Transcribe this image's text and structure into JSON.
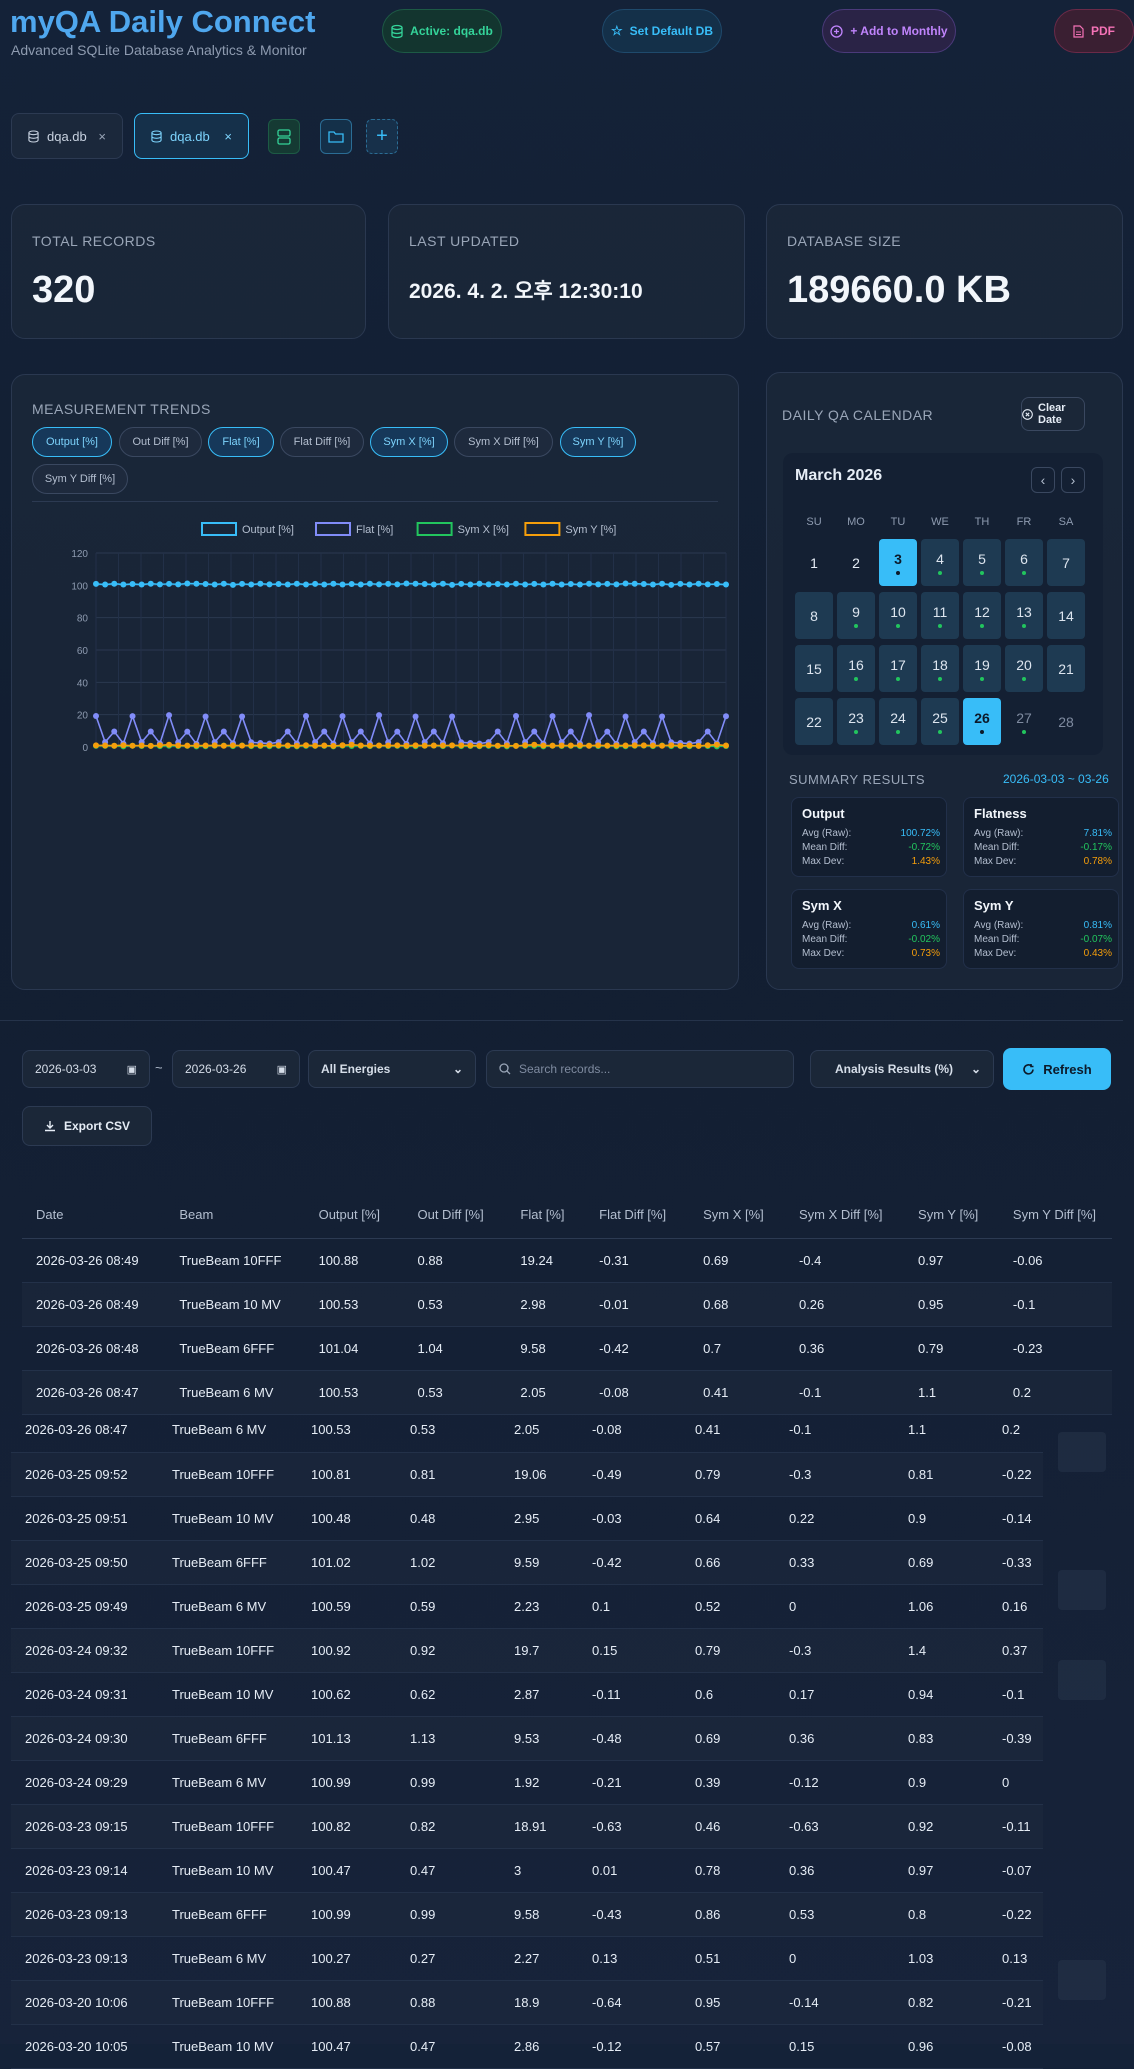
{
  "header": {
    "title": "myQA Daily Connect",
    "subtitle": "Advanced SQLite Database Analytics & Monitor",
    "active_db": "Active: dqa.db",
    "set_default": "Set Default DB",
    "add_monthly": "+ Add to Monthly",
    "pdf": "PDF"
  },
  "tabs": [
    {
      "label": "dqa.db",
      "close": "×"
    },
    {
      "label": "dqa.db",
      "close": "×"
    }
  ],
  "stats": {
    "total_records_label": "TOTAL RECORDS",
    "total_records": "320",
    "last_updated_label": "LAST UPDATED",
    "last_updated": "2026. 4. 2. 오후 12:30:10",
    "db_size_label": "DATABASE SIZE",
    "db_size": "189660.0 KB"
  },
  "trends": {
    "heading": "MEASUREMENT TRENDS",
    "chips": [
      {
        "label": "Output [%]",
        "active": true
      },
      {
        "label": "Out Diff [%]",
        "active": false
      },
      {
        "label": "Flat [%]",
        "active": true
      },
      {
        "label": "Flat Diff [%]",
        "active": false
      },
      {
        "label": "Sym X [%]",
        "active": true
      },
      {
        "label": "Sym X Diff [%]",
        "active": false
      },
      {
        "label": "Sym Y [%]",
        "active": true
      },
      {
        "label": "Sym Y Diff [%]",
        "active": false
      }
    ]
  },
  "chart_data": {
    "type": "line",
    "ylim": [
      0,
      120
    ],
    "yticks": [
      "120",
      "100",
      "80",
      "60",
      "40",
      "20",
      "0"
    ],
    "grid": true,
    "legend_position": "top",
    "series": [
      {
        "name": "Output [%]",
        "color": "#38bdf8",
        "values": [
          100.9,
          100.5,
          101.0,
          100.5,
          100.8,
          100.5,
          101.0,
          100.6,
          100.9,
          100.6,
          101.1,
          101.0,
          100.8,
          100.5,
          101.0,
          100.3,
          100.9,
          100.5,
          101.0,
          100.6,
          100.8,
          100.5,
          101.0,
          100.5,
          100.9,
          100.5,
          101.0,
          100.5,
          100.8,
          100.5,
          101.0,
          100.6,
          100.9,
          100.6,
          101.1,
          101.0,
          100.8,
          100.5,
          101.0,
          100.3,
          100.9,
          100.5,
          101.0,
          100.6,
          100.8,
          100.5,
          101.0,
          100.5,
          100.9,
          100.5,
          101.0,
          100.5,
          100.8,
          100.5,
          101.0,
          100.6,
          100.9,
          100.6,
          101.1,
          101.0,
          100.8,
          100.5,
          101.0,
          100.3,
          100.9,
          100.5,
          101.0,
          100.6,
          100.8,
          100.5
        ]
      },
      {
        "name": "Flat [%]",
        "color": "#818cf8",
        "values": [
          19.2,
          3.0,
          9.6,
          2.1,
          19.1,
          3.0,
          9.6,
          2.2,
          19.7,
          2.9,
          9.5,
          1.9,
          18.9,
          3.0,
          9.6,
          2.3,
          18.9,
          2.9,
          2.5,
          2.1,
          3.0,
          9.6,
          2.2,
          19.2,
          3.0,
          9.6,
          2.1,
          19.1,
          3.0,
          9.6,
          2.2,
          19.7,
          2.9,
          9.5,
          1.9,
          18.9,
          3.0,
          9.6,
          2.3,
          18.9,
          2.9,
          2.5,
          2.1,
          3.0,
          9.6,
          2.2,
          19.2,
          3.0,
          9.6,
          2.1,
          19.1,
          3.0,
          9.6,
          2.2,
          19.7,
          2.9,
          9.5,
          1.9,
          18.9,
          3.0,
          9.6,
          2.3,
          18.9,
          2.9,
          2.5,
          2.1,
          3.0,
          9.6,
          2.2,
          19.0
        ]
      },
      {
        "name": "Sym X [%]",
        "color": "#22c55e",
        "values": [
          0.69,
          0.68,
          0.7,
          0.41,
          0.79,
          0.64,
          0.66,
          0.52,
          0.79,
          0.6,
          0.69,
          0.39,
          0.46,
          0.78,
          0.86,
          0.51,
          0.95,
          0.57,
          0.6,
          0.5,
          0.7,
          0.6,
          0.4,
          0.69,
          0.68,
          0.7,
          0.41,
          0.79,
          0.64,
          0.66,
          0.52,
          0.79,
          0.6,
          0.69,
          0.39,
          0.46,
          0.78,
          0.86,
          0.51,
          0.95,
          0.57,
          0.6,
          0.5,
          0.7,
          0.6,
          0.4,
          0.69,
          0.68,
          0.7,
          0.41,
          0.79,
          0.64,
          0.66,
          0.52,
          0.79,
          0.6,
          0.69,
          0.39,
          0.46,
          0.78,
          0.86,
          0.51,
          0.95,
          0.57,
          0.6,
          0.5,
          0.7,
          0.6,
          0.4,
          0.6
        ]
      },
      {
        "name": "Sym Y [%]",
        "color": "#f59e0b",
        "values": [
          0.97,
          0.95,
          0.79,
          1.1,
          0.81,
          0.9,
          0.69,
          1.06,
          1.4,
          0.94,
          0.83,
          0.9,
          0.92,
          0.97,
          0.8,
          1.03,
          0.82,
          0.96,
          0.9,
          1.0,
          0.97,
          0.95,
          0.79,
          1.1,
          0.81,
          0.9,
          0.69,
          1.06,
          1.4,
          0.94,
          0.83,
          0.9,
          0.92,
          0.97,
          0.8,
          1.03,
          0.82,
          0.96,
          0.9,
          1.0,
          0.97,
          0.95,
          0.79,
          1.1,
          0.81,
          0.9,
          0.69,
          1.06,
          1.4,
          0.94,
          0.83,
          0.9,
          0.92,
          0.97,
          0.8,
          1.03,
          0.82,
          0.96,
          0.9,
          1.0,
          0.97,
          0.95,
          0.79,
          1.1,
          0.81,
          0.9,
          0.69,
          1.06,
          1.4,
          0.9
        ]
      }
    ]
  },
  "calendar": {
    "heading": "DAILY QA CALENDAR",
    "clear_date": "Clear Date",
    "month": "March 2026",
    "dow": [
      "SU",
      "MO",
      "TU",
      "WE",
      "TH",
      "FR",
      "SA"
    ],
    "days": [
      {
        "d": "1",
        "s": "plain"
      },
      {
        "d": "2",
        "s": "plain"
      },
      {
        "d": "3",
        "s": "sel",
        "dot": true
      },
      {
        "d": "4",
        "s": "has",
        "dot": true
      },
      {
        "d": "5",
        "s": "has",
        "dot": true
      },
      {
        "d": "6",
        "s": "has",
        "dot": true
      },
      {
        "d": "7",
        "s": "has",
        "dot": false
      },
      {
        "d": "8",
        "s": "has"
      },
      {
        "d": "9",
        "s": "has",
        "dot": true
      },
      {
        "d": "10",
        "s": "has",
        "dot": true
      },
      {
        "d": "11",
        "s": "has",
        "dot": true
      },
      {
        "d": "12",
        "s": "has",
        "dot": true
      },
      {
        "d": "13",
        "s": "has",
        "dot": true
      },
      {
        "d": "14",
        "s": "has"
      },
      {
        "d": "15",
        "s": "has"
      },
      {
        "d": "16",
        "s": "has",
        "dot": true
      },
      {
        "d": "17",
        "s": "has",
        "dot": true
      },
      {
        "d": "18",
        "s": "has",
        "dot": true
      },
      {
        "d": "19",
        "s": "has",
        "dot": true
      },
      {
        "d": "20",
        "s": "has",
        "dot": true
      },
      {
        "d": "21",
        "s": "has"
      },
      {
        "d": "22",
        "s": "has"
      },
      {
        "d": "23",
        "s": "has",
        "dot": true
      },
      {
        "d": "24",
        "s": "has",
        "dot": true
      },
      {
        "d": "25",
        "s": "has",
        "dot": true
      },
      {
        "d": "26",
        "s": "sel",
        "dot": true
      },
      {
        "d": "27",
        "s": "dim",
        "dot": true
      },
      {
        "d": "28",
        "s": "dim"
      }
    ]
  },
  "summary": {
    "heading": "SUMMARY RESULTS",
    "range": "2026-03-03 ~ 03-26",
    "cards": [
      {
        "title": "Output",
        "rows": [
          {
            "k": "Avg (Raw):",
            "v": "100.72%",
            "c": "#38bdf8"
          },
          {
            "k": "Mean Diff:",
            "v": "-0.72%",
            "c": "#22c55e"
          },
          {
            "k": "Max Dev:",
            "v": "1.43%",
            "c": "#f59e0b"
          }
        ]
      },
      {
        "title": "Flatness",
        "rows": [
          {
            "k": "Avg (Raw):",
            "v": "7.81%",
            "c": "#38bdf8"
          },
          {
            "k": "Mean Diff:",
            "v": "-0.17%",
            "c": "#22c55e"
          },
          {
            "k": "Max Dev:",
            "v": "0.78%",
            "c": "#f59e0b"
          }
        ]
      },
      {
        "title": "Sym X",
        "rows": [
          {
            "k": "Avg (Raw):",
            "v": "0.61%",
            "c": "#38bdf8"
          },
          {
            "k": "Mean Diff:",
            "v": "-0.02%",
            "c": "#22c55e"
          },
          {
            "k": "Max Dev:",
            "v": "0.73%",
            "c": "#f59e0b"
          }
        ]
      },
      {
        "title": "Sym Y",
        "rows": [
          {
            "k": "Avg (Raw):",
            "v": "0.81%",
            "c": "#38bdf8"
          },
          {
            "k": "Mean Diff:",
            "v": "-0.07%",
            "c": "#22c55e"
          },
          {
            "k": "Max Dev:",
            "v": "0.43%",
            "c": "#f59e0b"
          }
        ]
      }
    ]
  },
  "filters": {
    "date_from": "2026-03-03",
    "tilde": "~",
    "date_to": "2026-03-26",
    "energy": "All Energies",
    "search_placeholder": "Search records...",
    "analysis": "Analysis Results (%)",
    "refresh": "Refresh",
    "export": "Export CSV"
  },
  "table": {
    "columns": [
      "Date",
      "Beam",
      "Output [%]",
      "Out Diff [%]",
      "Flat [%]",
      "Flat Diff [%]",
      "Sym X [%]",
      "Sym X Diff [%]",
      "Sym Y [%]",
      "Sym Y Diff [%]"
    ],
    "rows": [
      [
        "2026-03-26 08:49",
        "TrueBeam 10FFF",
        "100.88",
        "0.88",
        "19.24",
        "-0.31",
        "0.69",
        "-0.4",
        "0.97",
        "-0.06"
      ],
      [
        "2026-03-26 08:49",
        "TrueBeam 10 MV",
        "100.53",
        "0.53",
        "2.98",
        "-0.01",
        "0.68",
        "0.26",
        "0.95",
        "-0.1"
      ],
      [
        "2026-03-26 08:48",
        "TrueBeam 6FFF",
        "101.04",
        "1.04",
        "9.58",
        "-0.42",
        "0.7",
        "0.36",
        "0.79",
        "-0.23"
      ],
      [
        "2026-03-26 08:47",
        "TrueBeam 6 MV",
        "100.53",
        "0.53",
        "2.05",
        "-0.08",
        "0.41",
        "-0.1",
        "1.1",
        "0.2"
      ]
    ],
    "rows2": [
      [
        "2026-03-26 08:47",
        "TrueBeam 6 MV",
        "100.53",
        "0.53",
        "2.05",
        "-0.08",
        "0.41",
        "-0.1",
        "1.1",
        "0.2"
      ],
      [
        "2026-03-25 09:52",
        "TrueBeam 10FFF",
        "100.81",
        "0.81",
        "19.06",
        "-0.49",
        "0.79",
        "-0.3",
        "0.81",
        "-0.22"
      ],
      [
        "2026-03-25 09:51",
        "TrueBeam 10 MV",
        "100.48",
        "0.48",
        "2.95",
        "-0.03",
        "0.64",
        "0.22",
        "0.9",
        "-0.14"
      ],
      [
        "2026-03-25 09:50",
        "TrueBeam 6FFF",
        "101.02",
        "1.02",
        "9.59",
        "-0.42",
        "0.66",
        "0.33",
        "0.69",
        "-0.33"
      ],
      [
        "2026-03-25 09:49",
        "TrueBeam 6 MV",
        "100.59",
        "0.59",
        "2.23",
        "0.1",
        "0.52",
        "0",
        "1.06",
        "0.16"
      ],
      [
        "2026-03-24 09:32",
        "TrueBeam 10FFF",
        "100.92",
        "0.92",
        "19.7",
        "0.15",
        "0.79",
        "-0.3",
        "1.4",
        "0.37"
      ],
      [
        "2026-03-24 09:31",
        "TrueBeam 10 MV",
        "100.62",
        "0.62",
        "2.87",
        "-0.11",
        "0.6",
        "0.17",
        "0.94",
        "-0.1"
      ],
      [
        "2026-03-24 09:30",
        "TrueBeam 6FFF",
        "101.13",
        "1.13",
        "9.53",
        "-0.48",
        "0.69",
        "0.36",
        "0.83",
        "-0.39"
      ],
      [
        "2026-03-24 09:29",
        "TrueBeam 6 MV",
        "100.99",
        "0.99",
        "1.92",
        "-0.21",
        "0.39",
        "-0.12",
        "0.9",
        "0"
      ],
      [
        "2026-03-23 09:15",
        "TrueBeam 10FFF",
        "100.82",
        "0.82",
        "18.91",
        "-0.63",
        "0.46",
        "-0.63",
        "0.92",
        "-0.11"
      ],
      [
        "2026-03-23 09:14",
        "TrueBeam 10 MV",
        "100.47",
        "0.47",
        "3",
        "0.01",
        "0.78",
        "0.36",
        "0.97",
        "-0.07"
      ],
      [
        "2026-03-23 09:13",
        "TrueBeam 6FFF",
        "100.99",
        "0.99",
        "9.58",
        "-0.43",
        "0.86",
        "0.53",
        "0.8",
        "-0.22"
      ],
      [
        "2026-03-23 09:13",
        "TrueBeam 6 MV",
        "100.27",
        "0.27",
        "2.27",
        "0.13",
        "0.51",
        "0",
        "1.03",
        "0.13"
      ],
      [
        "2026-03-20 10:06",
        "TrueBeam 10FFF",
        "100.88",
        "0.88",
        "18.9",
        "-0.64",
        "0.95",
        "-0.14",
        "0.82",
        "-0.21"
      ],
      [
        "2026-03-20 10:05",
        "TrueBeam 10 MV",
        "100.47",
        "0.47",
        "2.86",
        "-0.12",
        "0.57",
        "0.15",
        "0.96",
        "-0.08"
      ]
    ]
  }
}
